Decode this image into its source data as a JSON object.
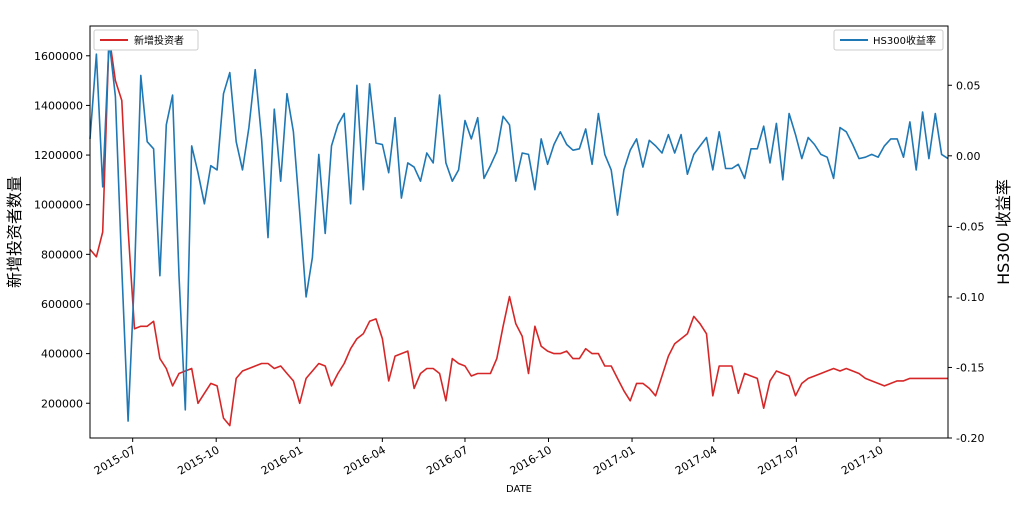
{
  "chart_data": {
    "type": "line",
    "xlabel": "DATE",
    "ylabel_left": "新增投资者数量",
    "ylabel_right": "HS300 收益率",
    "ylim_left": [
      60000,
      1720000
    ],
    "ylim_right": [
      -0.2,
      0.092
    ],
    "x_range": [
      "2015-05-15",
      "2017-12-15"
    ],
    "x_ticks": [
      "2015-07",
      "2015-10",
      "2016-01",
      "2016-04",
      "2016-07",
      "2016-10",
      "2017-01",
      "2017-04",
      "2017-07",
      "2017-10"
    ],
    "y_ticks_left": [
      200000,
      400000,
      600000,
      800000,
      1000000,
      1200000,
      1400000,
      1600000
    ],
    "y_ticks_right": [
      -0.2,
      -0.15,
      -0.1,
      -0.05,
      0.0,
      0.05
    ],
    "y_tick_labels_right": [
      "-0.20",
      "-0.15",
      "-0.10",
      "-0.05",
      "0.00",
      "0.05"
    ],
    "colors": {
      "new_investors": "#d62728",
      "hs300": "#1f77b4"
    },
    "legend_left": {
      "label": "新增投资者",
      "placement": "upper-left"
    },
    "legend_right": {
      "label": "HS300收益率",
      "placement": "upper-right"
    },
    "series": [
      {
        "name": "新增投资者",
        "axis": "left",
        "x": [
          "2015-05-15",
          "2015-05-22",
          "2015-05-29",
          "2015-06-05",
          "2015-06-12",
          "2015-06-19",
          "2015-06-26",
          "2015-07-03",
          "2015-07-10",
          "2015-07-17",
          "2015-07-24",
          "2015-07-31",
          "2015-08-07",
          "2015-08-14",
          "2015-08-21",
          "2015-08-28",
          "2015-09-04",
          "2015-09-11",
          "2015-09-18",
          "2015-09-25",
          "2015-10-02",
          "2015-10-09",
          "2015-10-16",
          "2015-10-23",
          "2015-10-30",
          "2015-11-06",
          "2015-11-13",
          "2015-11-20",
          "2015-11-27",
          "2015-12-04",
          "2015-12-11",
          "2015-12-18",
          "2015-12-25",
          "2016-01-01",
          "2016-01-08",
          "2016-01-15",
          "2016-01-22",
          "2016-01-29",
          "2016-02-05",
          "2016-02-12",
          "2016-02-19",
          "2016-02-26",
          "2016-03-04",
          "2016-03-11",
          "2016-03-18",
          "2016-03-25",
          "2016-04-01",
          "2016-04-08",
          "2016-04-15",
          "2016-04-22",
          "2016-04-29",
          "2016-05-06",
          "2016-05-13",
          "2016-05-20",
          "2016-05-27",
          "2016-06-03",
          "2016-06-10",
          "2016-06-17",
          "2016-06-24",
          "2016-07-01",
          "2016-07-08",
          "2016-07-15",
          "2016-07-22",
          "2016-07-29",
          "2016-08-05",
          "2016-08-12",
          "2016-08-19",
          "2016-08-26",
          "2016-09-02",
          "2016-09-09",
          "2016-09-16",
          "2016-09-23",
          "2016-09-30",
          "2016-10-07",
          "2016-10-14",
          "2016-10-21",
          "2016-10-28",
          "2016-11-04",
          "2016-11-11",
          "2016-11-18",
          "2016-11-25",
          "2016-12-02",
          "2016-12-09",
          "2016-12-16",
          "2016-12-23",
          "2016-12-30",
          "2017-01-06",
          "2017-01-13",
          "2017-01-20",
          "2017-01-27",
          "2017-02-03",
          "2017-02-10",
          "2017-02-17",
          "2017-02-24",
          "2017-03-03",
          "2017-03-10",
          "2017-03-17",
          "2017-03-24",
          "2017-03-31",
          "2017-04-07",
          "2017-04-14",
          "2017-04-21",
          "2017-04-28",
          "2017-05-05",
          "2017-05-12",
          "2017-05-19",
          "2017-05-26",
          "2017-06-02",
          "2017-06-09",
          "2017-06-16",
          "2017-06-23",
          "2017-06-30",
          "2017-07-07",
          "2017-07-14",
          "2017-07-21",
          "2017-07-28",
          "2017-08-04",
          "2017-08-11",
          "2017-08-18",
          "2017-08-25",
          "2017-09-01",
          "2017-09-08",
          "2017-09-15",
          "2017-09-22",
          "2017-09-29",
          "2017-10-06",
          "2017-10-13",
          "2017-10-20",
          "2017-10-27",
          "2017-11-03",
          "2017-11-10",
          "2017-11-17",
          "2017-11-24",
          "2017-12-01",
          "2017-12-08",
          "2017-12-15"
        ],
        "values": [
          820000,
          790000,
          890000,
          1680000,
          1500000,
          1420000,
          900000,
          500000,
          510000,
          510000,
          530000,
          380000,
          340000,
          270000,
          320000,
          330000,
          340000,
          200000,
          240000,
          280000,
          270000,
          140000,
          110000,
          300000,
          330000,
          340000,
          350000,
          360000,
          360000,
          340000,
          350000,
          320000,
          290000,
          200000,
          300000,
          330000,
          360000,
          350000,
          270000,
          320000,
          360000,
          420000,
          460000,
          480000,
          530000,
          540000,
          460000,
          290000,
          390000,
          400000,
          410000,
          260000,
          320000,
          340000,
          340000,
          320000,
          210000,
          380000,
          360000,
          350000,
          310000,
          320000,
          320000,
          320000,
          380000,
          510000,
          630000,
          520000,
          470000,
          320000,
          510000,
          430000,
          410000,
          400000,
          400000,
          410000,
          380000,
          380000,
          420000,
          400000,
          400000,
          350000,
          350000,
          300000,
          250000,
          210000,
          280000,
          280000,
          260000,
          230000,
          310000,
          390000,
          440000,
          460000,
          480000,
          550000,
          520000,
          480000,
          230000,
          350000,
          350000,
          350000,
          240000,
          320000,
          310000,
          300000,
          180000,
          290000,
          330000,
          320000,
          310000,
          230000,
          280000,
          300000,
          310000,
          320000,
          330000,
          340000,
          330000,
          340000,
          330000,
          320000,
          300000,
          290000,
          280000,
          270000,
          280000,
          290000,
          290000,
          300000,
          300000,
          300000,
          300000,
          300000,
          300000,
          300000
        ]
      },
      {
        "name": "HS300收益率",
        "axis": "right",
        "x": [
          "2015-05-15",
          "2015-05-22",
          "2015-05-29",
          "2015-06-05",
          "2015-06-12",
          "2015-06-19",
          "2015-06-26",
          "2015-07-03",
          "2015-07-10",
          "2015-07-17",
          "2015-07-24",
          "2015-07-31",
          "2015-08-07",
          "2015-08-14",
          "2015-08-21",
          "2015-08-28",
          "2015-09-04",
          "2015-09-11",
          "2015-09-18",
          "2015-09-25",
          "2015-10-02",
          "2015-10-09",
          "2015-10-16",
          "2015-10-23",
          "2015-10-30",
          "2015-11-06",
          "2015-11-13",
          "2015-11-20",
          "2015-11-27",
          "2015-12-04",
          "2015-12-11",
          "2015-12-18",
          "2015-12-25",
          "2016-01-01",
          "2016-01-08",
          "2016-01-15",
          "2016-01-22",
          "2016-01-29",
          "2016-02-05",
          "2016-02-12",
          "2016-02-19",
          "2016-02-26",
          "2016-03-04",
          "2016-03-11",
          "2016-03-18",
          "2016-03-25",
          "2016-04-01",
          "2016-04-08",
          "2016-04-15",
          "2016-04-22",
          "2016-04-29",
          "2016-05-06",
          "2016-05-13",
          "2016-05-20",
          "2016-05-27",
          "2016-06-03",
          "2016-06-10",
          "2016-06-17",
          "2016-06-24",
          "2016-07-01",
          "2016-07-08",
          "2016-07-15",
          "2016-07-22",
          "2016-07-29",
          "2016-08-05",
          "2016-08-12",
          "2016-08-19",
          "2016-08-26",
          "2016-09-02",
          "2016-09-09",
          "2016-09-16",
          "2016-09-23",
          "2016-09-30",
          "2016-10-07",
          "2016-10-14",
          "2016-10-21",
          "2016-10-28",
          "2016-11-04",
          "2016-11-11",
          "2016-11-18",
          "2016-11-25",
          "2016-12-02",
          "2016-12-09",
          "2016-12-16",
          "2016-12-23",
          "2016-12-30",
          "2017-01-06",
          "2017-01-13",
          "2017-01-20",
          "2017-01-27",
          "2017-02-03",
          "2017-02-10",
          "2017-02-17",
          "2017-02-24",
          "2017-03-03",
          "2017-03-10",
          "2017-03-17",
          "2017-03-24",
          "2017-03-31",
          "2017-04-07",
          "2017-04-14",
          "2017-04-21",
          "2017-04-28",
          "2017-05-05",
          "2017-05-12",
          "2017-05-19",
          "2017-05-26",
          "2017-06-02",
          "2017-06-09",
          "2017-06-16",
          "2017-06-23",
          "2017-06-30",
          "2017-07-07",
          "2017-07-14",
          "2017-07-21",
          "2017-07-28",
          "2017-08-04",
          "2017-08-11",
          "2017-08-18",
          "2017-08-25",
          "2017-09-01",
          "2017-09-08",
          "2017-09-15",
          "2017-09-22",
          "2017-09-29",
          "2017-10-06",
          "2017-10-13",
          "2017-10-20",
          "2017-10-27",
          "2017-11-03",
          "2017-11-10",
          "2017-11-17",
          "2017-11-24",
          "2017-12-01",
          "2017-12-08",
          "2017-12-15"
        ],
        "values": [
          0.012,
          0.072,
          -0.022,
          0.082,
          0.042,
          -0.08,
          -0.188,
          -0.085,
          0.057,
          0.01,
          0.005,
          -0.085,
          0.022,
          0.043,
          -0.085,
          -0.18,
          0.007,
          -0.012,
          -0.034,
          -0.007,
          -0.01,
          0.044,
          0.059,
          0.01,
          -0.01,
          0.02,
          0.061,
          0.012,
          -0.058,
          0.033,
          -0.018,
          0.044,
          0.017,
          -0.04,
          -0.1,
          -0.072,
          0.001,
          -0.055,
          0.007,
          0.022,
          0.03,
          -0.034,
          0.05,
          -0.024,
          0.051,
          0.009,
          0.008,
          -0.012,
          0.027,
          -0.03,
          -0.005,
          -0.008,
          -0.018,
          0.002,
          -0.005,
          0.043,
          -0.005,
          -0.018,
          -0.01,
          0.025,
          0.012,
          0.027,
          -0.016,
          -0.007,
          0.003,
          0.028,
          0.022,
          -0.018,
          0.002,
          0.001,
          -0.024,
          0.012,
          -0.006,
          0.008,
          0.017,
          0.008,
          0.004,
          0.005,
          0.019,
          -0.006,
          0.03,
          0.001,
          -0.01,
          -0.042,
          -0.01,
          0.004,
          0.012,
          -0.008,
          0.011,
          0.007,
          0.002,
          0.015,
          0.002,
          0.015,
          -0.013,
          0.001,
          0.007,
          0.013,
          -0.01,
          0.017,
          -0.009,
          -0.009,
          -0.006,
          -0.016,
          0.005,
          0.005,
          0.021,
          -0.005,
          0.023,
          -0.017,
          0.03,
          0.015,
          -0.002,
          0.013,
          0.008,
          0.001,
          -0.001,
          -0.016,
          0.02,
          0.017,
          0.008,
          -0.002,
          -0.001,
          0.001,
          -0.001,
          0.007,
          0.012,
          0.012,
          -0.001,
          0.024,
          -0.01,
          0.031,
          -0.002,
          0.03,
          0.001,
          -0.002
        ]
      }
    ]
  }
}
